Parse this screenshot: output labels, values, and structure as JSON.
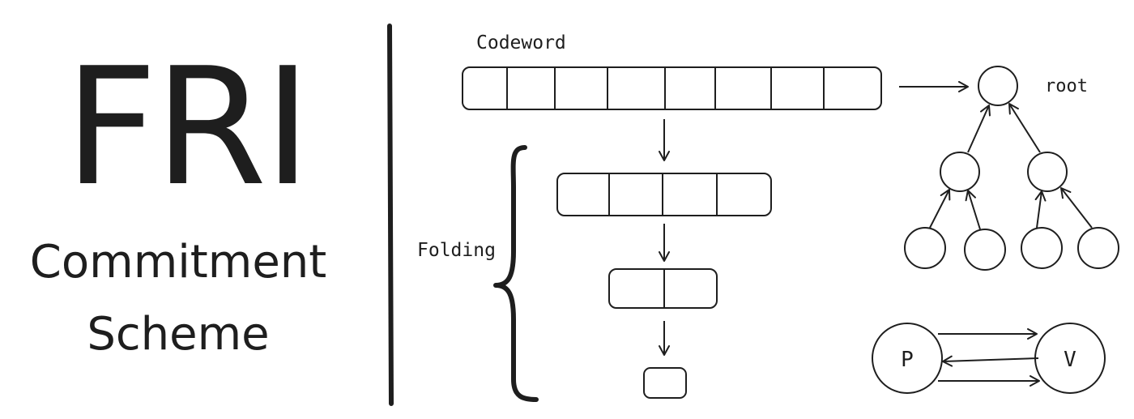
{
  "title": {
    "main": "FRI",
    "line1": "Commitment",
    "line2": "Scheme"
  },
  "diagram": {
    "codeword_label": "Codeword",
    "folding_label": "Folding",
    "root_label": "root",
    "prover_label": "P",
    "verifier_label": "V"
  },
  "colors": {
    "ink": "#1e1e1e",
    "background": "#ffffff"
  }
}
